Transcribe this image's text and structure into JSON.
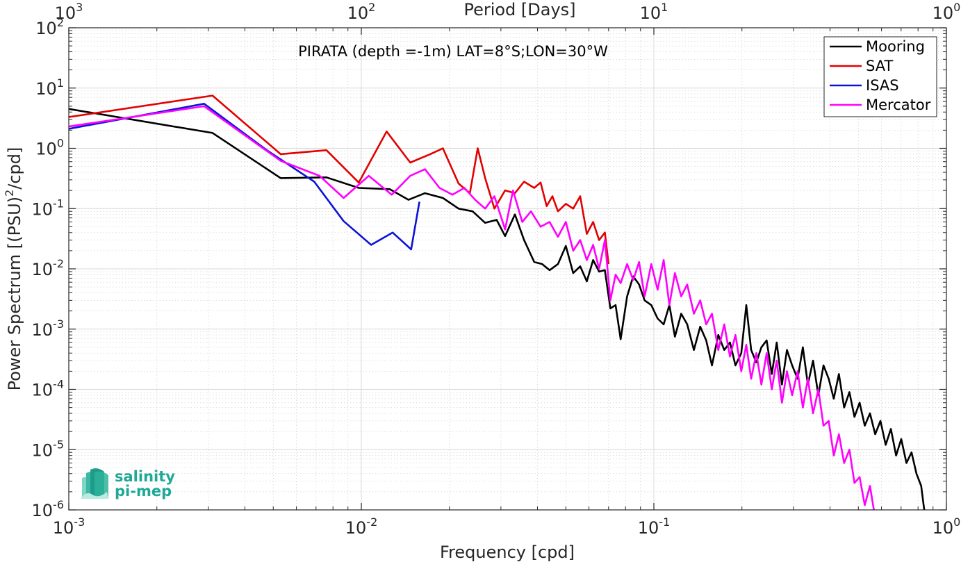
{
  "chart_data": {
    "type": "line",
    "title": "PIRATA (depth =-1m) LAT=8°S;LON=30°W",
    "xlabel": "Frequency [cpd]",
    "ylabel_main": "Power Spectrum [(PSU)",
    "ylabel_sup": "2",
    "ylabel_tail": "/cpd]",
    "top_xlabel": "Period [Days]",
    "x_scale": "log",
    "y_scale": "log",
    "xlim": [
      0.001,
      1
    ],
    "ylim": [
      1e-06,
      100
    ],
    "grid": true,
    "legend_position": "top-right",
    "x_ticks": [
      {
        "base": "10",
        "exp": "-3",
        "value": 0.001
      },
      {
        "base": "10",
        "exp": "-2",
        "value": 0.01
      },
      {
        "base": "10",
        "exp": "-1",
        "value": 0.1
      },
      {
        "base": "10",
        "exp": "0",
        "value": 1
      }
    ],
    "top_ticks": [
      {
        "base": "10",
        "exp": "3",
        "value": 0.001
      },
      {
        "base": "10",
        "exp": "2",
        "value": 0.01
      },
      {
        "base": "10",
        "exp": "1",
        "value": 0.1
      },
      {
        "base": "10",
        "exp": "0",
        "value": 1
      }
    ],
    "y_ticks": [
      {
        "base": "10",
        "exp": "2",
        "value": 100
      },
      {
        "base": "10",
        "exp": "1",
        "value": 10
      },
      {
        "base": "10",
        "exp": "0",
        "value": 1
      },
      {
        "base": "10",
        "exp": "-1",
        "value": 0.1
      },
      {
        "base": "10",
        "exp": "-2",
        "value": 0.01
      },
      {
        "base": "10",
        "exp": "-3",
        "value": 0.001
      },
      {
        "base": "10",
        "exp": "-4",
        "value": 0.0001
      },
      {
        "base": "10",
        "exp": "-5",
        "value": 1e-05
      },
      {
        "base": "10",
        "exp": "-6",
        "value": 1e-06
      }
    ],
    "series": [
      {
        "name": "Mooring",
        "color": "#000000",
        "points": [
          [
            0.001,
            4.5
          ],
          [
            0.0031,
            1.8
          ],
          [
            0.0053,
            0.32
          ],
          [
            0.0076,
            0.33
          ],
          [
            0.0098,
            0.22
          ],
          [
            0.0125,
            0.21
          ],
          [
            0.0145,
            0.14
          ],
          [
            0.0165,
            0.18
          ],
          [
            0.019,
            0.15
          ],
          [
            0.0215,
            0.1
          ],
          [
            0.024,
            0.09
          ],
          [
            0.0265,
            0.058
          ],
          [
            0.029,
            0.065
          ],
          [
            0.031,
            0.035
          ],
          [
            0.0335,
            0.08
          ],
          [
            0.036,
            0.03
          ],
          [
            0.039,
            0.013
          ],
          [
            0.0415,
            0.012
          ],
          [
            0.044,
            0.0095
          ],
          [
            0.047,
            0.012
          ],
          [
            0.05,
            0.024
          ],
          [
            0.053,
            0.0085
          ],
          [
            0.056,
            0.011
          ],
          [
            0.059,
            0.0062
          ],
          [
            0.062,
            0.014
          ],
          [
            0.065,
            0.009
          ],
          [
            0.068,
            0.0095
          ],
          [
            0.071,
            0.0022
          ],
          [
            0.074,
            0.0025
          ],
          [
            0.077,
            0.00068
          ],
          [
            0.081,
            0.0035
          ],
          [
            0.085,
            0.0075
          ],
          [
            0.089,
            0.0055
          ],
          [
            0.093,
            0.003
          ],
          [
            0.098,
            0.0025
          ],
          [
            0.103,
            0.0015
          ],
          [
            0.108,
            0.0012
          ],
          [
            0.113,
            0.0025
          ],
          [
            0.118,
            0.00075
          ],
          [
            0.124,
            0.0018
          ],
          [
            0.13,
            0.0012
          ],
          [
            0.137,
            0.00045
          ],
          [
            0.144,
            0.0011
          ],
          [
            0.151,
            0.00065
          ],
          [
            0.158,
            0.00025
          ],
          [
            0.166,
            0.0008
          ],
          [
            0.174,
            0.00045
          ],
          [
            0.182,
            0.0006
          ],
          [
            0.19,
            0.00025
          ],
          [
            0.199,
            0.0004
          ],
          [
            0.207,
            0.0025
          ],
          [
            0.215,
            0.00045
          ],
          [
            0.224,
            0.00028
          ],
          [
            0.233,
            0.0005
          ],
          [
            0.243,
            0.00065
          ],
          [
            0.253,
            0.00018
          ],
          [
            0.263,
            0.0006
          ],
          [
            0.274,
            0.00012
          ],
          [
            0.285,
            0.00045
          ],
          [
            0.297,
            0.00025
          ],
          [
            0.31,
            0.00015
          ],
          [
            0.323,
            0.0005
          ],
          [
            0.336,
            0.00012
          ],
          [
            0.35,
            0.0003
          ],
          [
            0.365,
            8e-05
          ],
          [
            0.38,
            0.00025
          ],
          [
            0.396,
            0.00015
          ],
          [
            0.412,
            7e-05
          ],
          [
            0.429,
            0.00018
          ],
          [
            0.447,
            5e-05
          ],
          [
            0.466,
            9e-05
          ],
          [
            0.485,
            3.5e-05
          ],
          [
            0.505,
            6e-05
          ],
          [
            0.526,
            2.5e-05
          ],
          [
            0.548,
            4e-05
          ],
          [
            0.571,
            1.8e-05
          ],
          [
            0.595,
            3e-05
          ],
          [
            0.62,
            1.2e-05
          ],
          [
            0.646,
            2.2e-05
          ],
          [
            0.673,
            8e-06
          ],
          [
            0.701,
            1.5e-05
          ],
          [
            0.73,
            6e-06
          ],
          [
            0.76,
            9e-06
          ],
          [
            0.79,
            4e-06
          ],
          [
            0.82,
            2.5e-06
          ],
          [
            0.84,
            1e-06
          ]
        ]
      },
      {
        "name": "SAT",
        "color": "#e30000",
        "points": [
          [
            0.001,
            3.3
          ],
          [
            0.0031,
            7.5
          ],
          [
            0.0053,
            0.8
          ],
          [
            0.0076,
            0.93
          ],
          [
            0.0098,
            0.27
          ],
          [
            0.0122,
            1.9
          ],
          [
            0.0147,
            0.58
          ],
          [
            0.0172,
            0.8
          ],
          [
            0.019,
            1.0
          ],
          [
            0.0215,
            0.26
          ],
          [
            0.0235,
            0.18
          ],
          [
            0.025,
            1.0
          ],
          [
            0.0265,
            0.32
          ],
          [
            0.0285,
            0.1
          ],
          [
            0.031,
            0.2
          ],
          [
            0.0335,
            0.18
          ],
          [
            0.036,
            0.28
          ],
          [
            0.039,
            0.22
          ],
          [
            0.041,
            0.27
          ],
          [
            0.043,
            0.11
          ],
          [
            0.045,
            0.16
          ],
          [
            0.047,
            0.09
          ],
          [
            0.05,
            0.12
          ],
          [
            0.053,
            0.1
          ],
          [
            0.056,
            0.16
          ],
          [
            0.059,
            0.038
          ],
          [
            0.062,
            0.06
          ],
          [
            0.065,
            0.03
          ],
          [
            0.068,
            0.04
          ],
          [
            0.07,
            0.012
          ]
        ]
      },
      {
        "name": "ISAS",
        "color": "#0b13d8",
        "points": [
          [
            0.001,
            2.1
          ],
          [
            0.0029,
            5.5
          ],
          [
            0.0048,
            0.9
          ],
          [
            0.0069,
            0.28
          ],
          [
            0.0087,
            0.062
          ],
          [
            0.0108,
            0.025
          ],
          [
            0.0128,
            0.04
          ],
          [
            0.0148,
            0.021
          ],
          [
            0.0158,
            0.13
          ]
        ]
      },
      {
        "name": "Mercator",
        "color": "#ff00ff",
        "points": [
          [
            0.001,
            2.3
          ],
          [
            0.0029,
            5.0
          ],
          [
            0.0053,
            0.62
          ],
          [
            0.0072,
            0.35
          ],
          [
            0.0087,
            0.15
          ],
          [
            0.0106,
            0.35
          ],
          [
            0.0127,
            0.17
          ],
          [
            0.0147,
            0.35
          ],
          [
            0.0165,
            0.45
          ],
          [
            0.0185,
            0.22
          ],
          [
            0.0205,
            0.17
          ],
          [
            0.0225,
            0.22
          ],
          [
            0.0245,
            0.14
          ],
          [
            0.0265,
            0.1
          ],
          [
            0.0285,
            0.16
          ],
          [
            0.031,
            0.045
          ],
          [
            0.033,
            0.2
          ],
          [
            0.0355,
            0.06
          ],
          [
            0.038,
            0.09
          ],
          [
            0.041,
            0.05
          ],
          [
            0.044,
            0.06
          ],
          [
            0.047,
            0.034
          ],
          [
            0.05,
            0.06
          ],
          [
            0.053,
            0.02
          ],
          [
            0.056,
            0.03
          ],
          [
            0.059,
            0.014
          ],
          [
            0.062,
            0.025
          ],
          [
            0.065,
            0.01
          ],
          [
            0.068,
            0.03
          ],
          [
            0.071,
            0.003
          ],
          [
            0.074,
            0.008
          ],
          [
            0.077,
            0.0058
          ],
          [
            0.081,
            0.012
          ],
          [
            0.085,
            0.0065
          ],
          [
            0.089,
            0.013
          ],
          [
            0.093,
            0.0035
          ],
          [
            0.098,
            0.012
          ],
          [
            0.103,
            0.0045
          ],
          [
            0.108,
            0.014
          ],
          [
            0.113,
            0.0025
          ],
          [
            0.118,
            0.0085
          ],
          [
            0.124,
            0.0035
          ],
          [
            0.13,
            0.0055
          ],
          [
            0.137,
            0.0018
          ],
          [
            0.144,
            0.003
          ],
          [
            0.151,
            0.0012
          ],
          [
            0.158,
            0.0018
          ],
          [
            0.166,
            0.00045
          ],
          [
            0.174,
            0.0012
          ],
          [
            0.182,
            0.00035
          ],
          [
            0.19,
            0.0008
          ],
          [
            0.199,
            0.0002
          ],
          [
            0.207,
            0.00055
          ],
          [
            0.215,
            0.00015
          ],
          [
            0.224,
            0.0004
          ],
          [
            0.233,
            0.00012
          ],
          [
            0.243,
            0.0004
          ],
          [
            0.253,
            0.0001
          ],
          [
            0.263,
            0.0003
          ],
          [
            0.274,
            6e-05
          ],
          [
            0.285,
            0.0002
          ],
          [
            0.297,
            8e-05
          ],
          [
            0.31,
            0.0002
          ],
          [
            0.323,
            5e-05
          ],
          [
            0.336,
            0.00015
          ],
          [
            0.35,
            4e-05
          ],
          [
            0.365,
            0.0001
          ],
          [
            0.38,
            2.5e-05
          ],
          [
            0.396,
            3e-05
          ],
          [
            0.412,
            8e-06
          ],
          [
            0.429,
            1.8e-05
          ],
          [
            0.447,
            6e-06
          ],
          [
            0.466,
            1e-05
          ],
          [
            0.485,
            2.8e-06
          ],
          [
            0.505,
            3.5e-06
          ],
          [
            0.526,
            1.2e-06
          ],
          [
            0.548,
            2.5e-06
          ],
          [
            0.565,
            1e-06
          ]
        ]
      }
    ]
  },
  "logo": {
    "line1": "salinity",
    "line2": "pi-mep"
  }
}
